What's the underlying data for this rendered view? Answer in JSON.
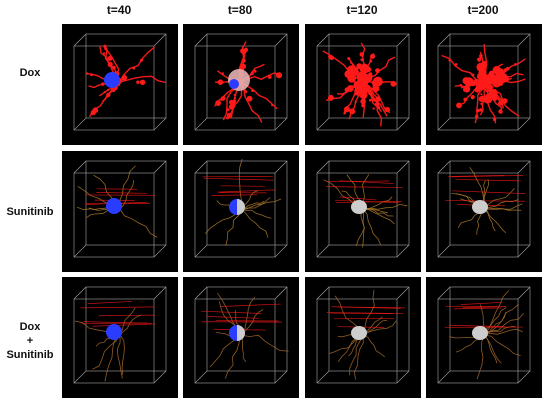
{
  "columns": [
    "t=40",
    "t=80",
    "t=120",
    "t=200"
  ],
  "rows": [
    {
      "label_lines": [
        "Dox"
      ],
      "vessel_color": "#e81818",
      "vessel_level": "dense"
    },
    {
      "label_lines": [
        "Sunitinib"
      ],
      "vessel_color": "#b07a2a",
      "vessel_level": "sparse"
    },
    {
      "label_lines": [
        "Dox",
        "+",
        "Sunitinib"
      ],
      "vessel_color": "#a86a2a",
      "vessel_level": "sparse"
    }
  ],
  "colors": {
    "panel_background": "#000000",
    "cube_edges": "#cfcfcf",
    "vessel_red": "#ff1a1a",
    "tumor_blue": "#2a3cff",
    "tumor_grey": "#cdcdcd"
  }
}
